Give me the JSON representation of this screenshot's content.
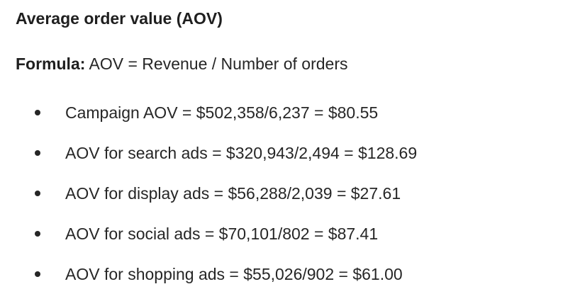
{
  "heading": "Average order value (AOV)",
  "formula": {
    "label": "Formula:",
    "text": "AOV = Revenue / Number of orders"
  },
  "items": [
    "Campaign AOV = $502,358/6,237 = $80.55",
    "AOV for search ads = $320,943/2,494 = $128.69",
    "AOV for display ads =  $56,288/2,039 = $27.61",
    "AOV for social ads = $70,101/802 = $87.41",
    "AOV for shopping ads = $55,026/902 = $61.00"
  ]
}
